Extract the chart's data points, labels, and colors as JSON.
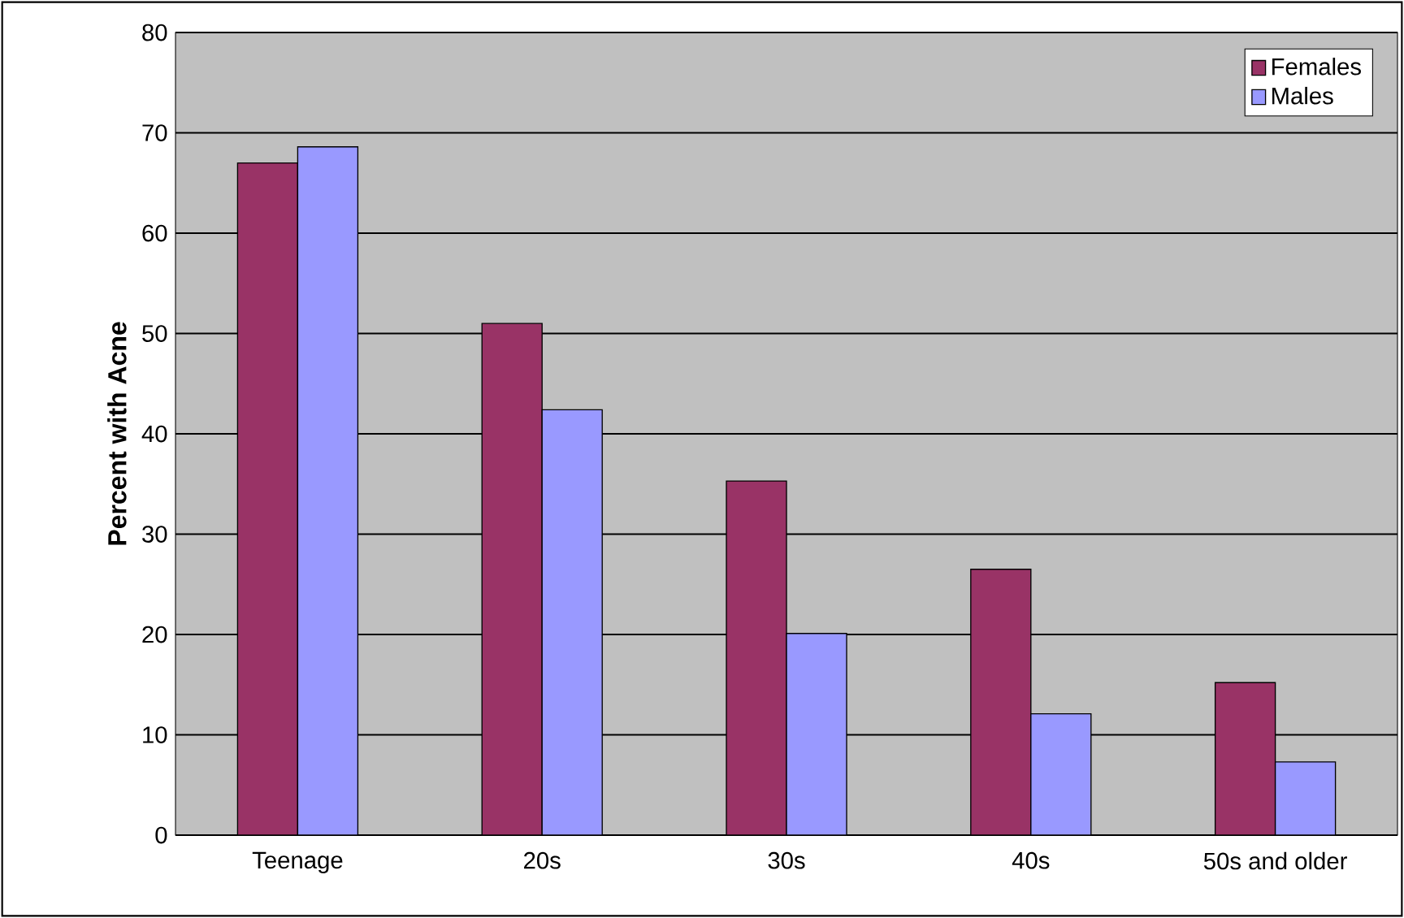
{
  "chart_data": {
    "type": "bar",
    "ylabel": "Percent with Acne",
    "categories": [
      "Teenage",
      "20s",
      "30s",
      "40s",
      "50s and older"
    ],
    "series": [
      {
        "name": "Females",
        "color": "#993366",
        "values": [
          67,
          51,
          35.3,
          26.5,
          15.2
        ]
      },
      {
        "name": "Males",
        "color": "#9999ff",
        "values": [
          68.6,
          42.4,
          20.1,
          12.1,
          7.3
        ]
      }
    ],
    "ylim": [
      0,
      80
    ],
    "yticks": [
      0,
      10,
      20,
      30,
      40,
      50,
      60,
      70,
      80
    ],
    "grid": "y",
    "legend": "top right"
  }
}
